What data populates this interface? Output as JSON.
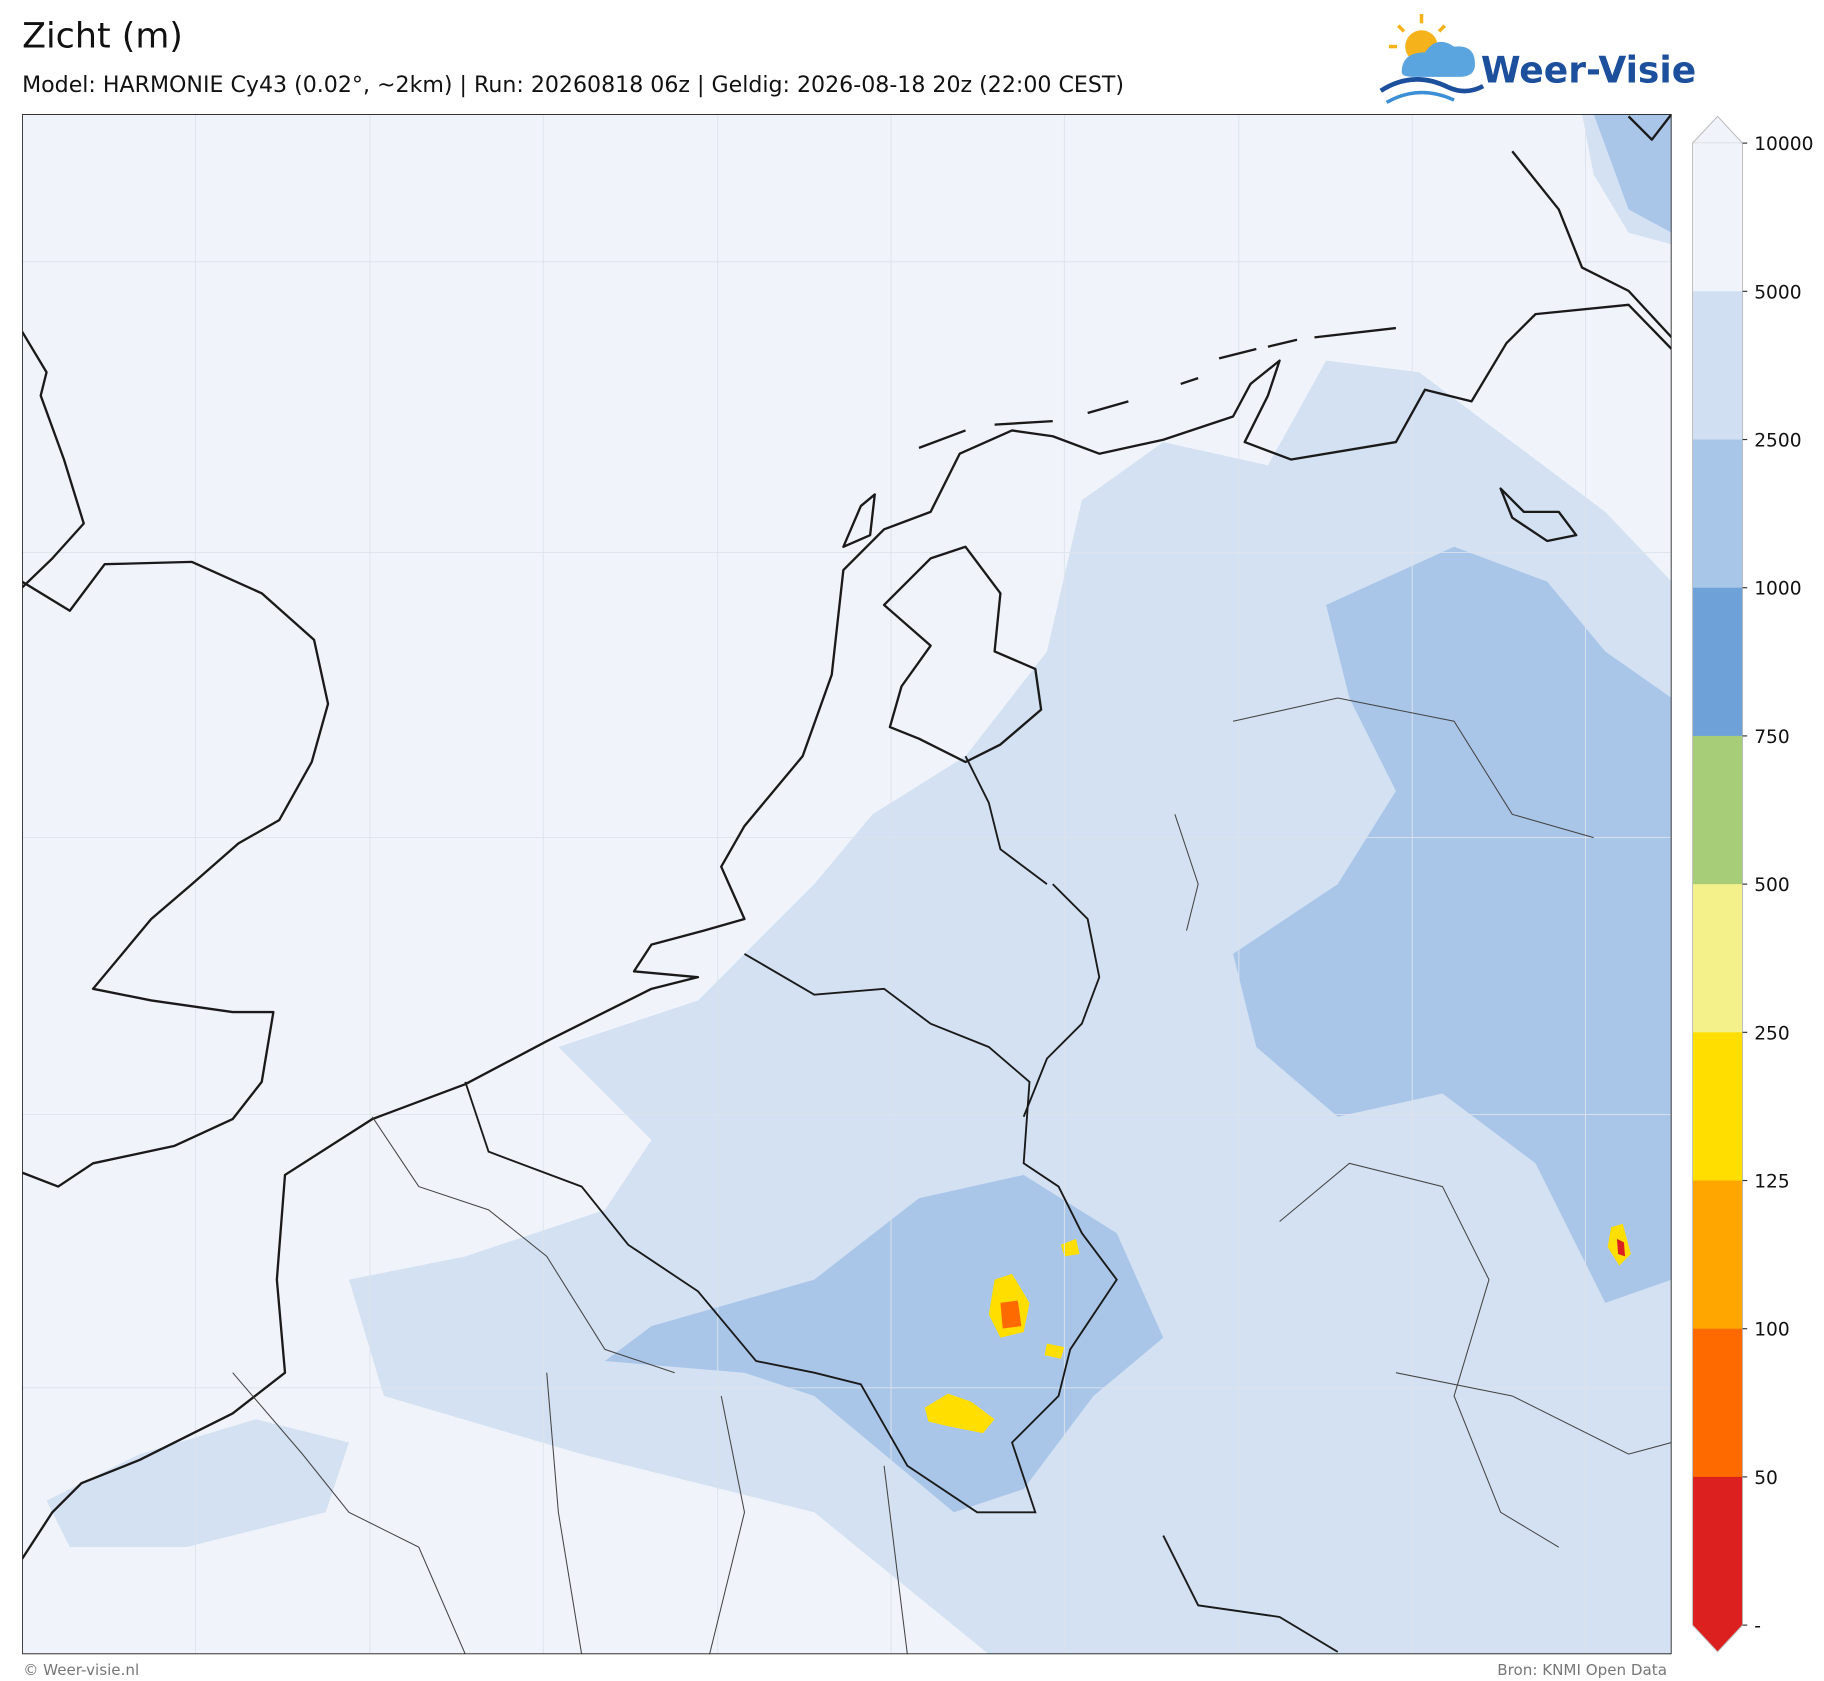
{
  "header": {
    "title": "Zicht (m)",
    "subtitle": "Model: HARMONIE Cy43 (0.02°, ~2km)  |  Run: 20260818 06z  |  Geldig: 2026-08-18 20z (22:00 CEST)"
  },
  "logo": {
    "text": "Weer-Visie"
  },
  "colorbar": {
    "labels": [
      "10000",
      "5000",
      "2500",
      "1000",
      "750",
      "500",
      "250",
      "125",
      "100",
      "50",
      "-"
    ],
    "colors": [
      "#f0f4fa",
      "#d0dff1",
      "#a8c6e8",
      "#6fa1d9",
      "#a8cd79",
      "#f4f18a",
      "#ffde00",
      "#ffa600",
      "#ff6a00",
      "#dc2020"
    ]
  },
  "footer": {
    "left": "© Weer-visie.nl",
    "right": "Bron: KNMI Open Data"
  }
}
